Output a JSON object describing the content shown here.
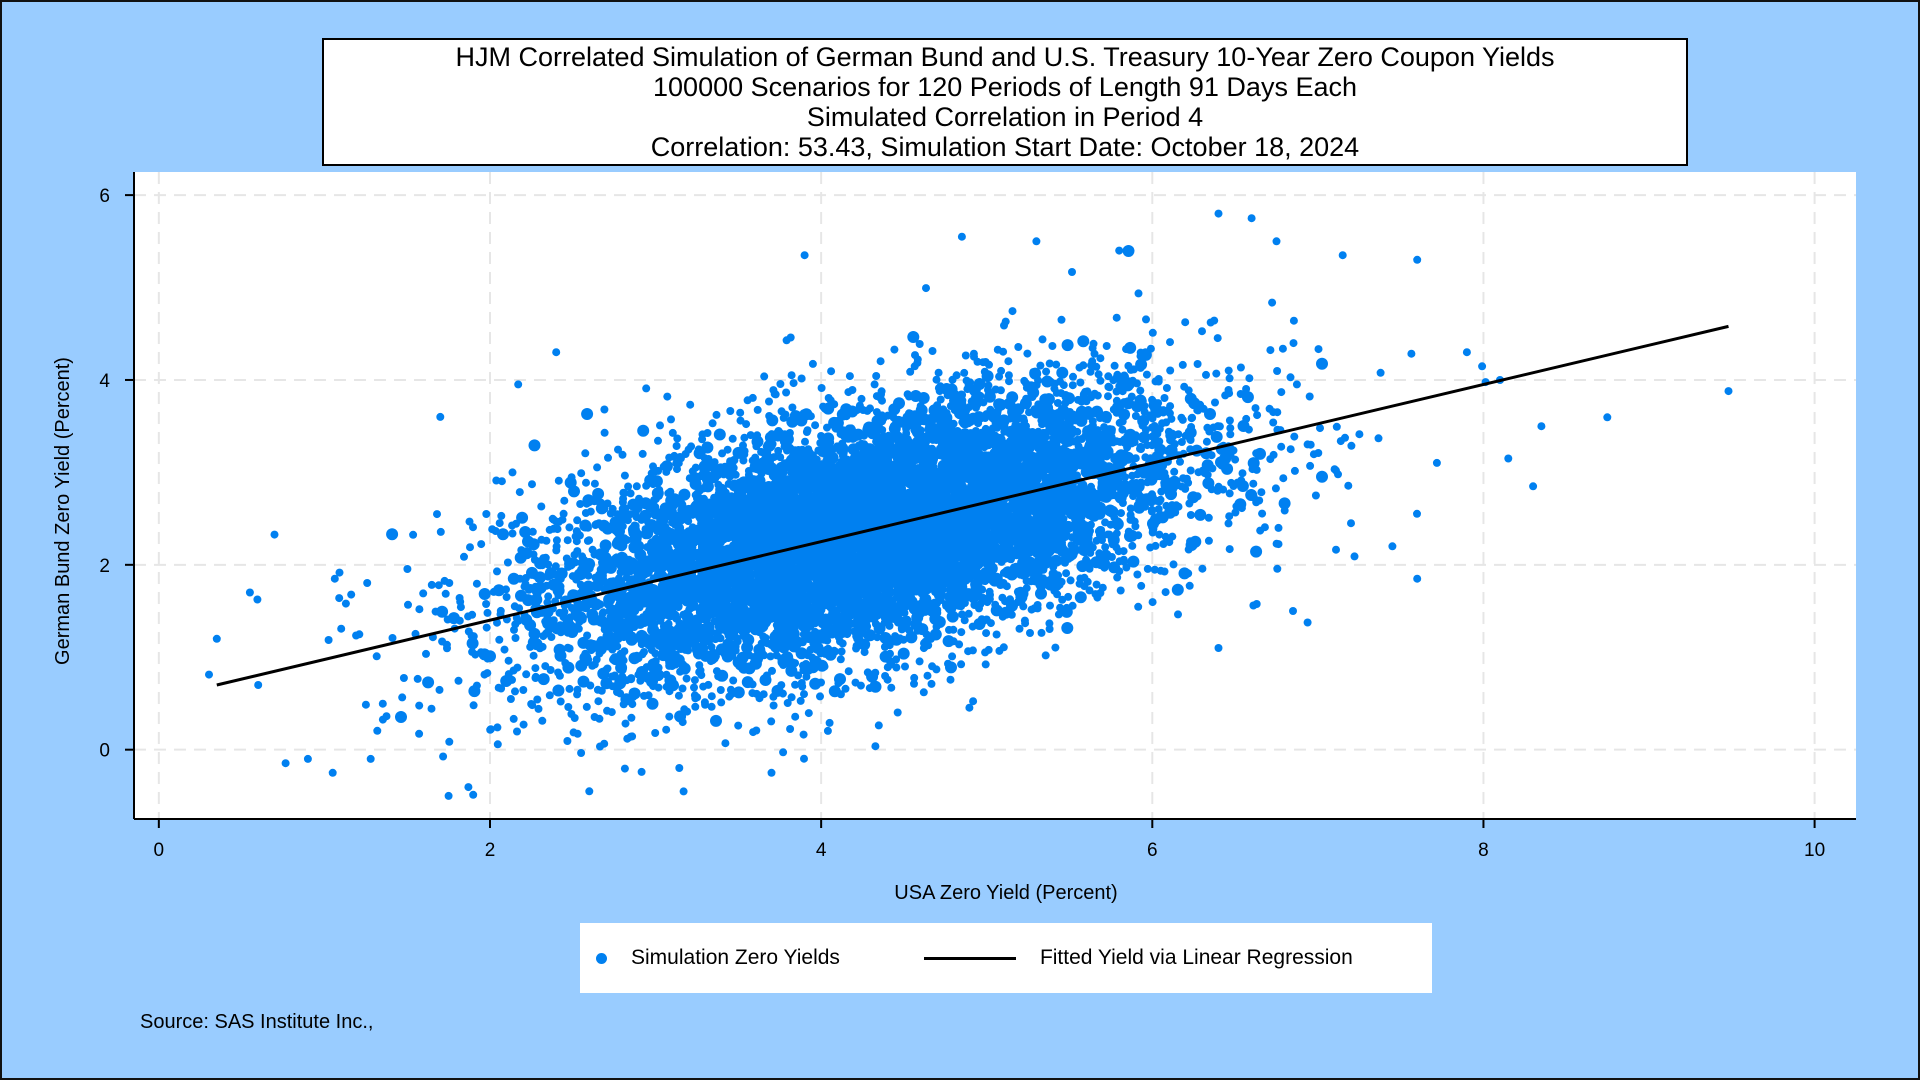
{
  "chart_data": {
    "type": "scatter",
    "title_lines": [
      "HJM Correlated Simulation of German Bund and U.S. Treasury 10-Year Zero Coupon Yields",
      "100000 Scenarios for 120 Periods of Length 91 Days Each",
      "Simulated Correlation in Period 4",
      "Correlation: 53.43,  Simulation Start Date:   October 18, 2024"
    ],
    "xlabel": "USA Zero Yield (Percent)",
    "ylabel": "German Bund Zero Yield (Percent)",
    "xlim": [
      -0.15,
      10.25
    ],
    "ylim": [
      -0.75,
      6.25
    ],
    "xticks": [
      "0",
      "2",
      "4",
      "6",
      "8",
      "10"
    ],
    "yticks": [
      "0",
      "2",
      "4",
      "6"
    ],
    "grid": true,
    "legend_position": "bottom",
    "series": [
      {
        "name": "Simulation Zero Yields",
        "kind": "scatter",
        "color": "#0080f0",
        "center": [
          4.25,
          2.35
        ],
        "sd": [
          1.05,
          0.82
        ],
        "correlation": 0.5343,
        "sample_count": 100000,
        "outliers": [
          [
            0.35,
            1.2
          ],
          [
            0.55,
            1.7
          ],
          [
            0.6,
            0.7
          ],
          [
            1.7,
            3.6
          ],
          [
            2.4,
            4.3
          ],
          [
            3.9,
            5.35
          ],
          [
            4.85,
            5.55
          ],
          [
            5.3,
            5.5
          ],
          [
            5.8,
            5.4
          ],
          [
            6.4,
            5.8
          ],
          [
            6.6,
            5.75
          ],
          [
            6.75,
            5.5
          ],
          [
            7.15,
            5.35
          ],
          [
            7.6,
            5.3
          ],
          [
            8.1,
            4.0
          ],
          [
            8.15,
            3.15
          ],
          [
            8.3,
            2.85
          ],
          [
            8.35,
            3.5
          ],
          [
            9.48,
            3.88
          ],
          [
            1.75,
            -0.5
          ],
          [
            2.6,
            -0.45
          ],
          [
            3.7,
            -0.25
          ],
          [
            6.4,
            1.1
          ],
          [
            6.85,
            1.5
          ],
          [
            7.6,
            1.85
          ],
          [
            7.45,
            2.2
          ],
          [
            0.9,
            -0.1
          ],
          [
            1.05,
            -0.25
          ],
          [
            7.2,
            2.45
          ],
          [
            7.9,
            4.3
          ]
        ]
      },
      {
        "name": "Fitted Yield via Linear Regression",
        "kind": "line",
        "color": "#000000",
        "x": [
          0.35,
          9.48
        ],
        "y": [
          0.7,
          4.58
        ]
      }
    ]
  },
  "source": "Source: SAS Institute Inc.,"
}
